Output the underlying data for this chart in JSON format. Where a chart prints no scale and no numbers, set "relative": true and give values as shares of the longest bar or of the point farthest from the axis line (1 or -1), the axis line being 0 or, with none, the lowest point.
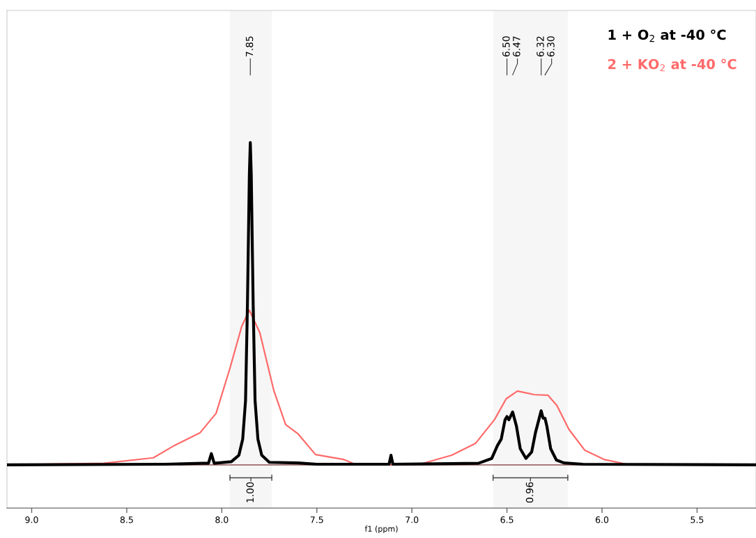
{
  "chart_data": {
    "type": "line",
    "relative": true,
    "xlabel": "f1 (ppm)",
    "xlim": [
      9.13,
      5.19
    ],
    "xticks": [
      {
        "value": 9.0,
        "label": "9.0"
      },
      {
        "value": 8.5,
        "label": "8.5"
      },
      {
        "value": 8.0,
        "label": "8.0"
      },
      {
        "value": 7.5,
        "label": "7.5"
      },
      {
        "value": 7.0,
        "label": "7.0"
      },
      {
        "value": 6.5,
        "label": "6.5"
      },
      {
        "value": 6.0,
        "label": "6.0"
      },
      {
        "value": 5.5,
        "label": "5.5"
      }
    ],
    "tick_labels": "x",
    "grid": false,
    "legend": "top right",
    "marker": "none",
    "line_style": "solid",
    "series": [
      {
        "name": "2 + KO$_{2}$ at -40 °C",
        "color": "#ff6a6a",
        "x": [
          9.13,
          8.62,
          8.36,
          8.25,
          8.114,
          8.03,
          7.957,
          7.895,
          7.855,
          7.8,
          7.726,
          7.664,
          7.6,
          7.507,
          7.36,
          7.29,
          6.97,
          6.79,
          6.665,
          6.566,
          6.504,
          6.445,
          6.357,
          6.284,
          6.237,
          6.174,
          6.09,
          5.99,
          5.87,
          5.19
        ],
        "values": [
          0,
          0.005,
          0.022,
          0.06,
          0.1,
          0.16,
          0.3,
          0.43,
          0.48,
          0.41,
          0.23,
          0.125,
          0.097,
          0.032,
          0.017,
          0,
          0,
          0.03,
          0.067,
          0.14,
          0.205,
          0.229,
          0.218,
          0.216,
          0.184,
          0.11,
          0.045,
          0.017,
          0.002,
          0
        ]
      },
      {
        "name": "1 + O$_{2}$ at -40 °C",
        "color": "#000000",
        "x": [
          9.13,
          8.3,
          8.1,
          8.07,
          8.055,
          8.04,
          7.95,
          7.91,
          7.89,
          7.875,
          7.865,
          7.855,
          7.85,
          7.845,
          7.835,
          7.825,
          7.81,
          7.79,
          7.75,
          7.6,
          7.5,
          7.25,
          7.12,
          7.11,
          7.1,
          6.95,
          6.79,
          6.65,
          6.58,
          6.55,
          6.53,
          6.51,
          6.5,
          6.49,
          6.47,
          6.45,
          6.43,
          6.4,
          6.37,
          6.35,
          6.32,
          6.31,
          6.3,
          6.29,
          6.27,
          6.24,
          6.2,
          6.1,
          5.19
        ],
        "values": [
          0,
          0.002,
          0.005,
          0.005,
          0.035,
          0.005,
          0.01,
          0.03,
          0.08,
          0.2,
          0.5,
          0.9,
          1.0,
          0.9,
          0.5,
          0.2,
          0.08,
          0.03,
          0.008,
          0.006,
          0.002,
          0.002,
          0.002,
          0.03,
          0.002,
          0.003,
          0.004,
          0.005,
          0.02,
          0.06,
          0.08,
          0.14,
          0.15,
          0.14,
          0.164,
          0.12,
          0.05,
          0.02,
          0.04,
          0.1,
          0.168,
          0.145,
          0.145,
          0.12,
          0.05,
          0.015,
          0.006,
          0.002,
          0
        ]
      }
    ],
    "annotations": [
      {
        "text": "7.85",
        "x": 7.85
      },
      {
        "text": "6.50",
        "x": 6.5
      },
      {
        "text": "6.47",
        "x": 6.47
      },
      {
        "text": "6.32",
        "x": 6.32
      },
      {
        "text": "6.30",
        "x": 6.3
      }
    ],
    "bands": [
      {
        "axis": "x",
        "from": 7.957,
        "to": 7.737,
        "label": "1.00"
      },
      {
        "axis": "x",
        "from": 6.573,
        "to": 6.18,
        "label": "0.96"
      }
    ]
  }
}
